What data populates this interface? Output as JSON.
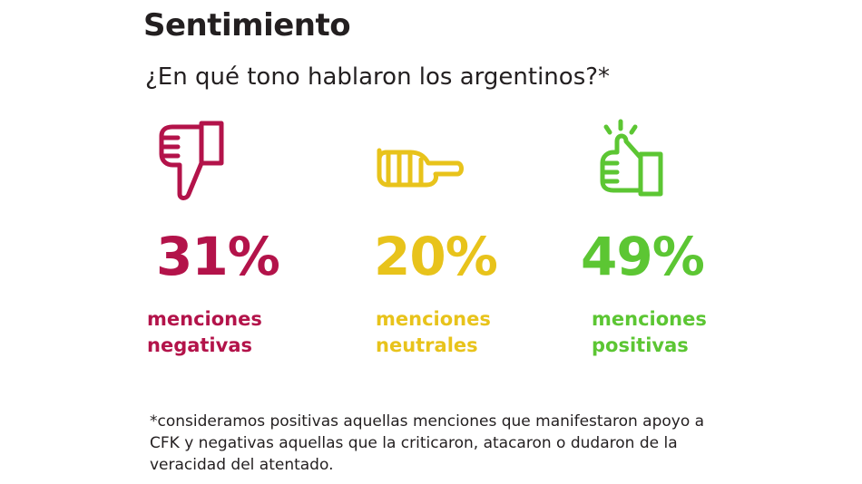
{
  "title": "Sentimiento",
  "subtitle": "¿En qué tono hablaron los argentinos?*",
  "colors": {
    "negative": "#b3134a",
    "neutral": "#e8c31b",
    "positive": "#5cc633"
  },
  "chart_data": {
    "type": "table",
    "categories": [
      "negativas",
      "neutrales",
      "positivas"
    ],
    "items": [
      {
        "icon": "thumbs-down-icon",
        "value": 31,
        "value_label": "31%",
        "label_line1": "menciones",
        "label_line2": "negativas",
        "color": "#b3134a"
      },
      {
        "icon": "neutral-hand-icon",
        "value": 20,
        "value_label": "20%",
        "label_line1": "menciones",
        "label_line2": "neutrales",
        "color": "#e8c31b"
      },
      {
        "icon": "thumbs-up-icon",
        "value": 49,
        "value_label": "49%",
        "label_line1": "menciones",
        "label_line2": "positivas",
        "color": "#5cc633"
      }
    ]
  },
  "footnote": "*consideramos positivas aquellas menciones que manifestaron apoyo a CFK y negativas aquellas que la criticaron, atacaron o dudaron de la veracidad del atentado."
}
